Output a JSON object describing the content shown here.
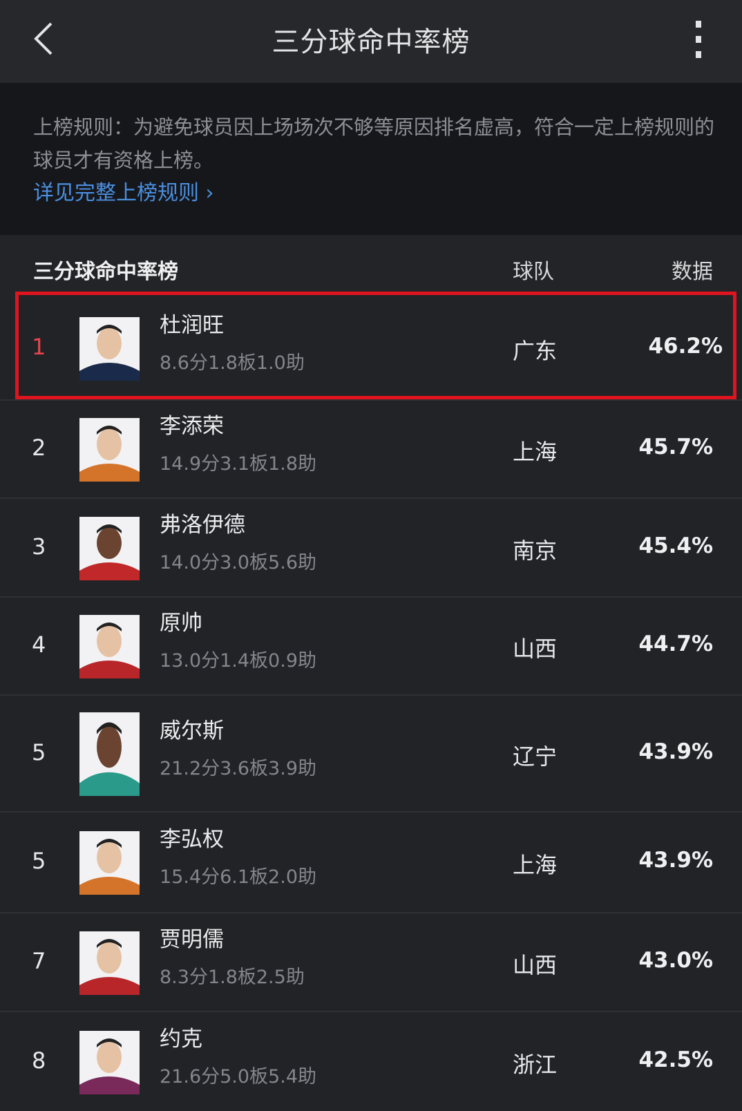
{
  "header": {
    "title": "三分球命中率榜",
    "back_icon": "chevron-left-icon",
    "more_icon": "more-vertical-icon"
  },
  "rules": {
    "text": "上榜规则：为避免球员因上场场次不够等原因排名虚高，符合一定上榜规则的球员才有资格上榜。",
    "link": "详见完整上榜规则 ›",
    "link_color": "#4a8fe0"
  },
  "table": {
    "title": "三分球命中率榜",
    "col_team": "球队",
    "col_data": "数据",
    "highlight_color": "#e0141e",
    "rows": [
      {
        "rank": "1",
        "name": "杜润旺",
        "stats": "8.6分1.8板1.0助",
        "team": "广东",
        "value": "46.2%",
        "jersey": "#1a2a4a"
      },
      {
        "rank": "2",
        "name": "李添荣",
        "stats": "14.9分3.1板1.8助",
        "team": "上海",
        "value": "45.7%",
        "jersey": "#d4742a"
      },
      {
        "rank": "3",
        "name": "弗洛伊德",
        "stats": "14.0分3.0板5.6助",
        "team": "南京",
        "value": "45.4%",
        "jersey": "#c0282a"
      },
      {
        "rank": "4",
        "name": "原帅",
        "stats": "13.0分1.4板0.9助",
        "team": "山西",
        "value": "44.7%",
        "jersey": "#b8262a"
      },
      {
        "rank": "5",
        "name": "威尔斯",
        "stats": "21.2分3.6板3.9助",
        "team": "辽宁",
        "value": "43.9%",
        "jersey": "#2a9a8a"
      },
      {
        "rank": "5",
        "name": "李弘权",
        "stats": "15.4分6.1板2.0助",
        "team": "上海",
        "value": "43.9%",
        "jersey": "#d4742a"
      },
      {
        "rank": "7",
        "name": "贾明儒",
        "stats": "8.3分1.8板2.5助",
        "team": "山西",
        "value": "43.0%",
        "jersey": "#b8262a"
      },
      {
        "rank": "8",
        "name": "约克",
        "stats": "21.6分5.0板5.4助",
        "team": "浙江",
        "value": "42.5%",
        "jersey": "#7a2a5a"
      }
    ]
  }
}
